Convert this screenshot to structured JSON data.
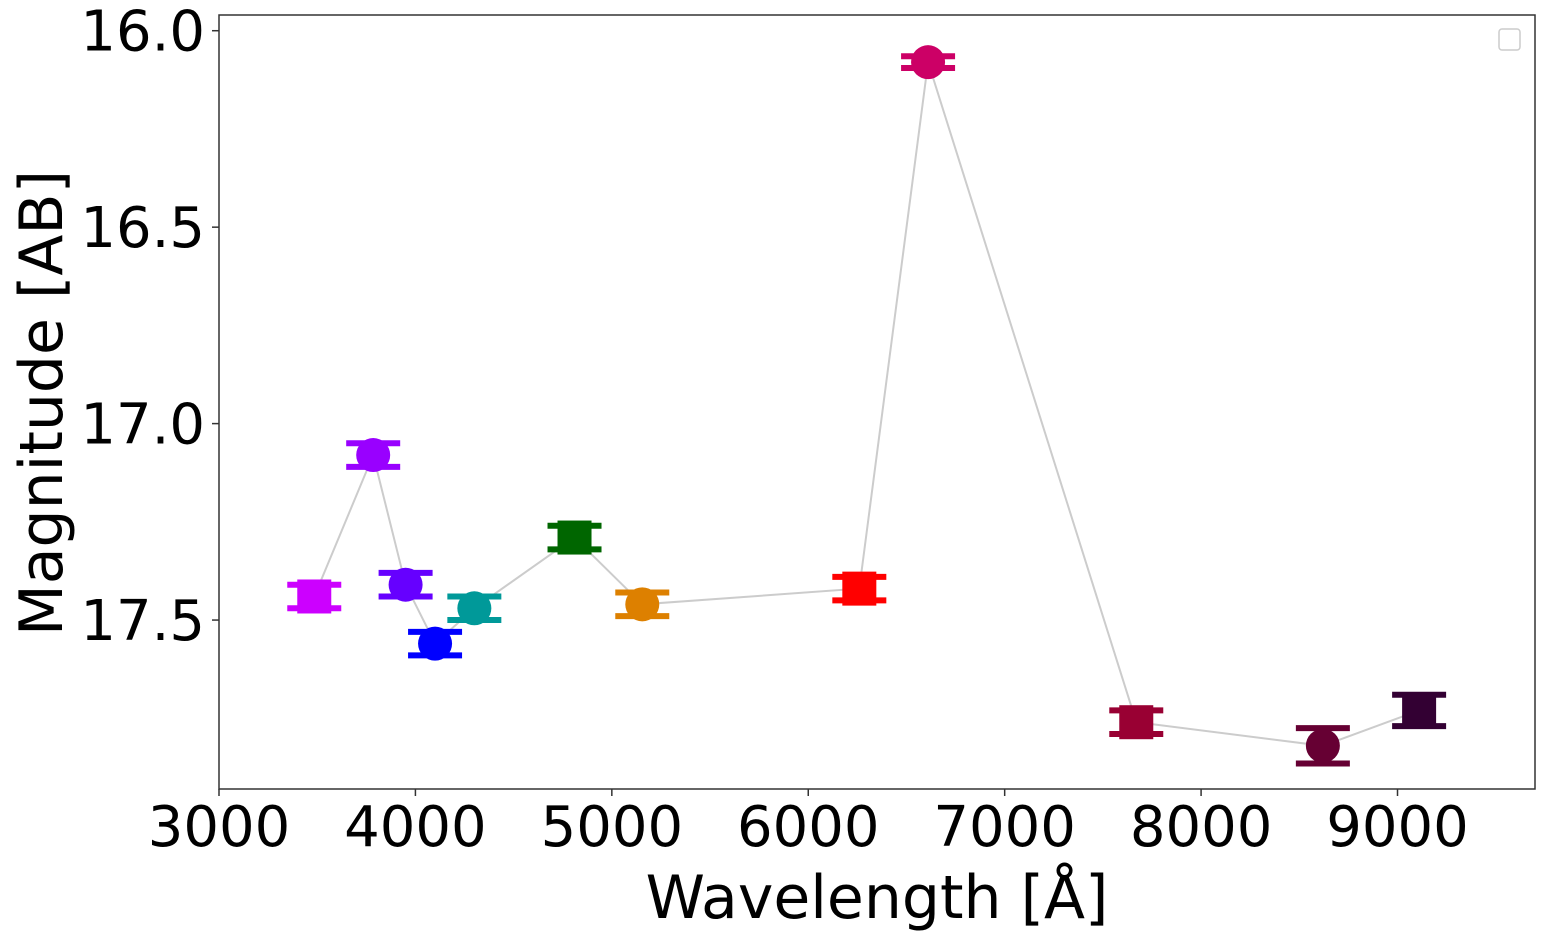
{
  "chart_data": {
    "type": "scatter",
    "title": "",
    "xlabel": "Wavelength [Å]",
    "ylabel": "Magnitude [AB]",
    "xlim": [
      3000,
      9700
    ],
    "ylim": [
      17.93,
      15.96
    ],
    "y_inverted": true,
    "grid": false,
    "legend": "top-right (empty)",
    "connector_color": "#cccccc",
    "x_ticks": [
      3000,
      4000,
      5000,
      6000,
      7000,
      8000,
      9000
    ],
    "x_tick_labels": [
      "3000",
      "4000",
      "5000",
      "6000",
      "7000",
      "8000",
      "9000"
    ],
    "y_ticks": [
      16.0,
      16.5,
      17.0,
      17.5
    ],
    "y_tick_labels": [
      "16.0",
      "16.5",
      "17.0",
      "17.5"
    ],
    "points": [
      {
        "x": 3485,
        "y": 17.44,
        "err": 0.03,
        "marker": "square",
        "color": "#cc00ff"
      },
      {
        "x": 3785,
        "y": 17.08,
        "err": 0.03,
        "marker": "circle",
        "color": "#9900ff"
      },
      {
        "x": 3950,
        "y": 17.41,
        "err": 0.03,
        "marker": "circle",
        "color": "#6600ff"
      },
      {
        "x": 4100,
        "y": 17.56,
        "err": 0.03,
        "marker": "circle",
        "color": "#0000ff"
      },
      {
        "x": 4300,
        "y": 17.47,
        "err": 0.03,
        "marker": "circle",
        "color": "#009999"
      },
      {
        "x": 4810,
        "y": 17.29,
        "err": 0.03,
        "marker": "square",
        "color": "#006600"
      },
      {
        "x": 5155,
        "y": 17.46,
        "err": 0.03,
        "marker": "circle",
        "color": "#dd8000"
      },
      {
        "x": 6260,
        "y": 17.42,
        "err": 0.03,
        "marker": "square",
        "color": "#ff0000"
      },
      {
        "x": 6610,
        "y": 16.08,
        "err": 0.015,
        "marker": "circle",
        "color": "#cc0066"
      },
      {
        "x": 7670,
        "y": 17.76,
        "err": 0.03,
        "marker": "square",
        "color": "#990033"
      },
      {
        "x": 8620,
        "y": 17.82,
        "err": 0.045,
        "marker": "circle",
        "color": "#660033"
      },
      {
        "x": 9110,
        "y": 17.73,
        "err": 0.04,
        "marker": "square",
        "color": "#330033"
      }
    ]
  }
}
